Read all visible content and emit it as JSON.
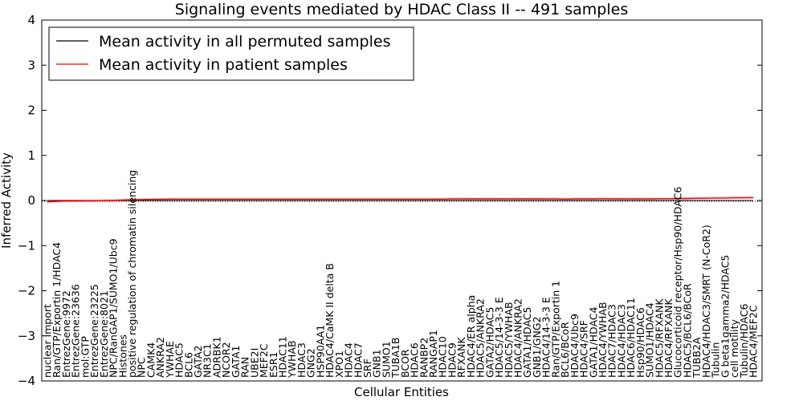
{
  "chart_data": {
    "type": "line",
    "title": "Signaling events mediated by HDAC Class II -- 491 samples",
    "xlabel": "Cellular Entities",
    "ylabel": "Inferred Activity",
    "ylim": [
      -4,
      4
    ],
    "yticks": [
      -4,
      -3,
      -2,
      -1,
      0,
      1,
      2,
      3,
      4
    ],
    "grid": false,
    "legend_position": "top-left",
    "categories": [
      "nuclear import",
      "Ran/GTP/Exportin 1/HDAC4",
      "EntrezGene:9972",
      "EntrezGene:23636",
      "mol:GTP",
      "EntrezGene:23225",
      "EntrezGene:8021",
      "NPC/RanGAP1/SUMO1/Ubc9",
      "Histones",
      "positive regulation of chromatin silencing",
      "NPC",
      "CAMK4",
      "ANKRA2",
      "YWHAE",
      "HDAC5",
      "BCL6",
      "GATA2",
      "NR3C1",
      "ADRBK1",
      "NCOR2",
      "GATA1",
      "RAN",
      "UBE2I",
      "MEF2C",
      "ESR1",
      "HDAC11",
      "YWHAB",
      "HDAC3",
      "GNG2",
      "HSP90AA1",
      "HDAC4/CaMK II delta B",
      "XPO1",
      "HDAC4",
      "HDAC7",
      "SRF",
      "GNB1",
      "SUMO1",
      "TUBA1B",
      "BCOR",
      "HDAC6",
      "RANBP2",
      "RANGAP1",
      "HDAC10",
      "HDAC9",
      "RFXANK",
      "HDAC4/ER alpha",
      "HDAC5/ANKRA2",
      "GATA2/HDAC5",
      "HDAC5/14-3-3 E",
      "HDAC5/YWHAB",
      "HDAC4/ANKRA2",
      "GATA1/HDAC5",
      "GNB1/GNG2",
      "HDAC4/14-3-3 E",
      "Ran/GTP/Exportin 1",
      "BCL6/BCoR",
      "HDAC4/Ubc9",
      "HDAC4/SRF",
      "GATA1/HDAC4",
      "HDAC4/YWHAB",
      "HDAC7/HDAC3",
      "HDAC4/HDAC3",
      "HDAC6/HDAC11",
      "Hsp90/HDAC6",
      "SUMO1/HDAC4",
      "HDAC5/RFXANK",
      "HDAC4/RFXANK",
      "Glucocorticoid receptor/Hsp90/HDAC6",
      "HDAC5/BCL6/BCoR",
      "TUBB2A",
      "HDAC4/HDAC3/SMRT (N-CoR2)",
      "Tubulin",
      "G beta1gamma2/HDAC5",
      "cell motility",
      "Tubulin/HDAC6",
      "HDAC4/MEF2C"
    ],
    "series": [
      {
        "name": "Mean activity in all permuted samples",
        "color": "#000000",
        "values": [
          0,
          0,
          0,
          0,
          0,
          0,
          0,
          0,
          0,
          0,
          0,
          0,
          0,
          0,
          0,
          0,
          0,
          0,
          0,
          0,
          0,
          0,
          0,
          0,
          0,
          0,
          0,
          0,
          0,
          0,
          0,
          0,
          0,
          0,
          0,
          0,
          0,
          0,
          0,
          0,
          0,
          0,
          0,
          0,
          0,
          0,
          0,
          0,
          0,
          0,
          0,
          0,
          0,
          0,
          0,
          0,
          0,
          0,
          0,
          0,
          0,
          0,
          0,
          0,
          0,
          0,
          0,
          0,
          0,
          0,
          0,
          0,
          0,
          0,
          0,
          0
        ]
      },
      {
        "name": "Mean activity in patient samples",
        "color": "#ff0000",
        "values": [
          -0.03,
          -0.02,
          -0.01,
          -0.01,
          -0.005,
          -0.005,
          0,
          0,
          0.01,
          0.02,
          0.02,
          0.025,
          0.025,
          0.03,
          0.03,
          0.03,
          0.03,
          0.03,
          0.03,
          0.03,
          0.03,
          0.03,
          0.03,
          0.03,
          0.03,
          0.03,
          0.03,
          0.03,
          0.03,
          0.03,
          0.03,
          0.03,
          0.03,
          0.03,
          0.03,
          0.03,
          0.03,
          0.03,
          0.03,
          0.03,
          0.03,
          0.03,
          0.03,
          0.035,
          0.035,
          0.035,
          0.035,
          0.035,
          0.035,
          0.035,
          0.035,
          0.035,
          0.035,
          0.035,
          0.035,
          0.03,
          0.035,
          0.035,
          0.035,
          0.04,
          0.035,
          0.035,
          0.035,
          0.035,
          0.035,
          0.04,
          0.04,
          0.045,
          0.045,
          0.05,
          0.05,
          0.055,
          0.055,
          0.06,
          0.06,
          0.065
        ]
      }
    ]
  }
}
